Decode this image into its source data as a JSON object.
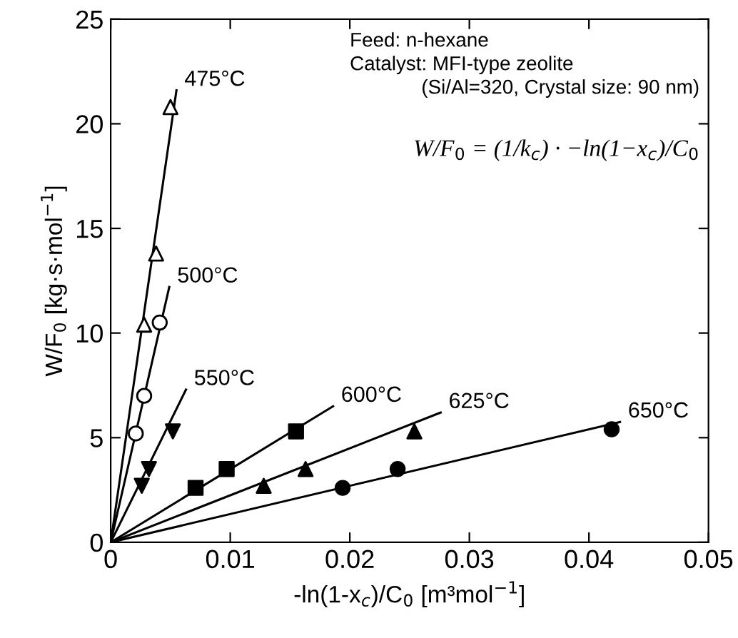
{
  "chart_data": {
    "type": "scatter",
    "xlabel": "-ln(1-x$_{c}$)/C$_{0}$ [m³mol$^{−1}$]",
    "ylabel": "W/F$_{0}$ [kg·s·mol$^{−1}$]",
    "xlim": [
      0,
      0.05
    ],
    "ylim": [
      0,
      25
    ],
    "xticks": [
      0,
      0.01,
      0.02,
      0.03,
      0.04,
      0.05
    ],
    "yticks": [
      0,
      5,
      10,
      15,
      20,
      25
    ],
    "grid": false,
    "legend": false,
    "series": [
      {
        "marker": "triangle",
        "color": "#ffffff",
        "x": [
          0.0028,
          0.0038,
          0.005
        ],
        "values": [
          10.4,
          13.8,
          20.8
        ]
      },
      {
        "type": "line",
        "name": "475°C",
        "marker": "none",
        "color": "#000000",
        "x": [
          0,
          0.0055
        ],
        "values": [
          0,
          21.6
        ]
      },
      {
        "marker": "circle",
        "color": "#ffffff",
        "x": [
          0.0021,
          0.0028,
          0.0041
        ],
        "values": [
          5.2,
          7.0,
          10.5
        ]
      },
      {
        "type": "line",
        "name": "500°C",
        "marker": "none",
        "color": "#000000",
        "x": [
          0,
          0.0049
        ],
        "values": [
          0,
          12.2
        ]
      },
      {
        "marker": "triangle_down",
        "color": "#000000",
        "x": [
          0.0026,
          0.0032,
          0.0052
        ],
        "values": [
          2.7,
          3.5,
          5.3
        ]
      },
      {
        "type": "line",
        "name": "550°C",
        "marker": "none",
        "color": "#000000",
        "x": [
          0,
          0.0063
        ],
        "values": [
          0,
          7.3
        ]
      },
      {
        "marker": "square",
        "color": "#000000",
        "x": [
          0.0071,
          0.0097,
          0.0155
        ],
        "values": [
          2.6,
          3.5,
          5.3
        ]
      },
      {
        "type": "line",
        "name": "600°C",
        "marker": "none",
        "color": "#000000",
        "x": [
          0,
          0.0186
        ],
        "values": [
          0,
          6.5
        ]
      },
      {
        "marker": "triangle",
        "color": "#000000",
        "x": [
          0.0128,
          0.0163,
          0.0254
        ],
        "values": [
          2.7,
          3.5,
          5.3
        ]
      },
      {
        "type": "line",
        "name": "625°C",
        "marker": "none",
        "color": "#000000",
        "x": [
          0,
          0.0276
        ],
        "values": [
          0,
          6.2
        ]
      },
      {
        "marker": "circle",
        "color": "#000000",
        "x": [
          0.0194,
          0.024,
          0.0419
        ],
        "values": [
          2.6,
          3.5,
          5.4
        ]
      },
      {
        "type": "line",
        "name": "650°C",
        "marker": "none",
        "color": "#000000",
        "x": [
          0,
          0.0426
        ],
        "values": [
          0,
          5.75
        ]
      }
    ],
    "annotations": [
      "Feed: n-hexane",
      "Catalyst: MFI-type zeolite",
      "(Si/Al=320, Crystal size: 90 nm)",
      "W/F$_{0}$ = (1/k$_{c}$) · −ln(1−x$_{c}$)/C$_{0}$"
    ]
  }
}
